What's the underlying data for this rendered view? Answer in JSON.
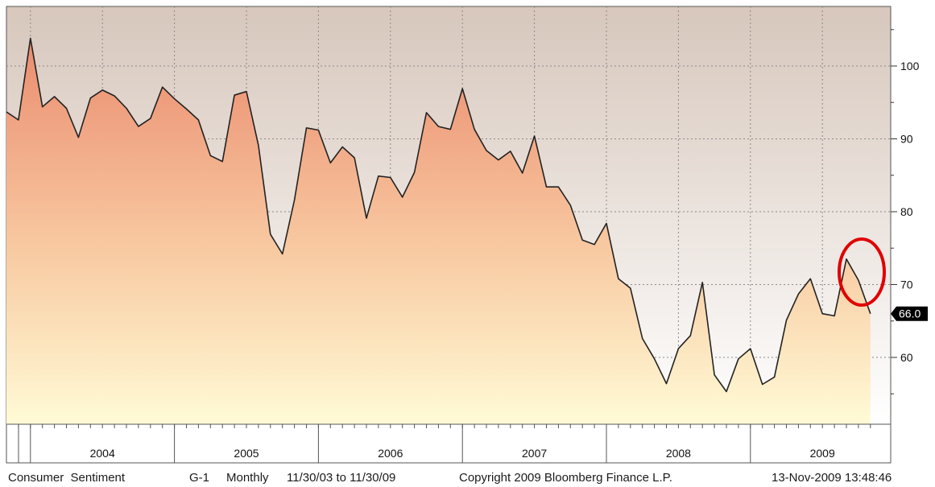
{
  "chart_data": {
    "type": "area",
    "title": "Consumer Sentiment",
    "x_start": "2003-11",
    "frequency": "monthly",
    "y_ticks": [
      60,
      70,
      80,
      90,
      100
    ],
    "ylim": [
      51,
      107
    ],
    "x_tick_labels": [
      "2004",
      "2005",
      "2006",
      "2007",
      "2008",
      "2009"
    ],
    "series": [
      {
        "values": [
          93.7,
          92.6,
          103.8,
          94.4,
          95.8,
          94.2,
          90.2,
          95.6,
          96.7,
          95.9,
          94.2,
          91.7,
          92.8,
          97.1,
          95.5,
          94.1,
          92.6,
          87.7,
          86.9,
          96.0,
          96.5,
          89.1,
          76.9,
          74.2,
          81.6,
          91.5,
          91.2,
          86.7,
          88.9,
          87.4,
          79.1,
          84.9,
          84.7,
          82.0,
          85.4,
          93.6,
          91.7,
          91.3,
          96.9,
          91.3,
          88.4,
          87.1,
          88.3,
          85.3,
          90.4,
          83.4,
          83.4,
          80.9,
          76.1,
          75.5,
          78.4,
          70.8,
          69.5,
          62.6,
          59.8,
          56.4,
          61.2,
          63.0,
          70.3,
          57.6,
          55.3,
          59.8,
          61.2,
          56.3,
          57.3,
          65.1,
          68.7,
          70.8,
          66.0,
          65.7,
          73.5,
          70.6,
          66.0
        ]
      }
    ],
    "last_value_label": "66.0",
    "grid": true,
    "annotations": [
      {
        "type": "circle",
        "color": "#e00000"
      }
    ],
    "colors": {
      "fill_top": "#ea8a6d",
      "fill_bottom": "#fffbd6",
      "bg_top": "#d7c7bc",
      "bg_bottom": "#ffffff",
      "line": "#222222",
      "highlight": "#e00000"
    }
  },
  "footer": {
    "series_name": "Consumer  Sentiment",
    "code": "G-1",
    "frequency": "Monthly",
    "range": "11/30/03 to 11/30/09",
    "copyright": "Copyright 2009 Bloomberg Finance L.P.",
    "timestamp": "13-Nov-2009 13:48:46"
  }
}
